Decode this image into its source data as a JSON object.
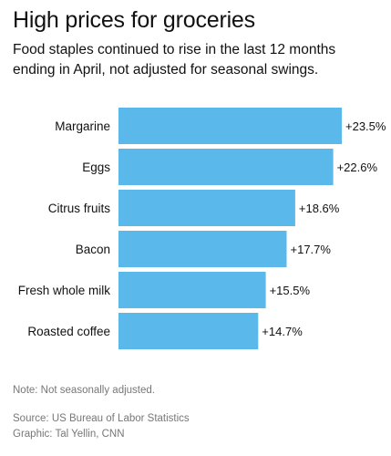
{
  "header": {
    "title": "High prices for groceries",
    "subtitle": "Food staples continued to rise in the last 12 months ending in April, not adjusted for seasonal swings."
  },
  "footer": {
    "note": "Note: Not seasonally adjusted.",
    "source": "Source: US Bureau of Labor Statistics",
    "credit": "Graphic: Tal Yellin, CNN"
  },
  "colors": {
    "bar": "#5bb8ea",
    "text": "#111111",
    "muted": "#777777"
  },
  "chart_data": {
    "type": "bar",
    "orientation": "horizontal",
    "categories": [
      "Margarine",
      "Eggs",
      "Citrus fruits",
      "Bacon",
      "Fresh whole milk",
      "Roasted coffee"
    ],
    "values": [
      23.5,
      22.6,
      18.6,
      17.7,
      15.5,
      14.7
    ],
    "value_labels": [
      "+23.5%",
      "+22.6%",
      "+18.6%",
      "+17.7%",
      "+15.5%",
      "+14.7%"
    ],
    "title": "High prices for groceries",
    "subtitle": "Food staples continued to rise in the last 12 months ending in April, not adjusted for seasonal swings.",
    "xlim": [
      0,
      23.5
    ],
    "grid": false,
    "legend": "none"
  }
}
